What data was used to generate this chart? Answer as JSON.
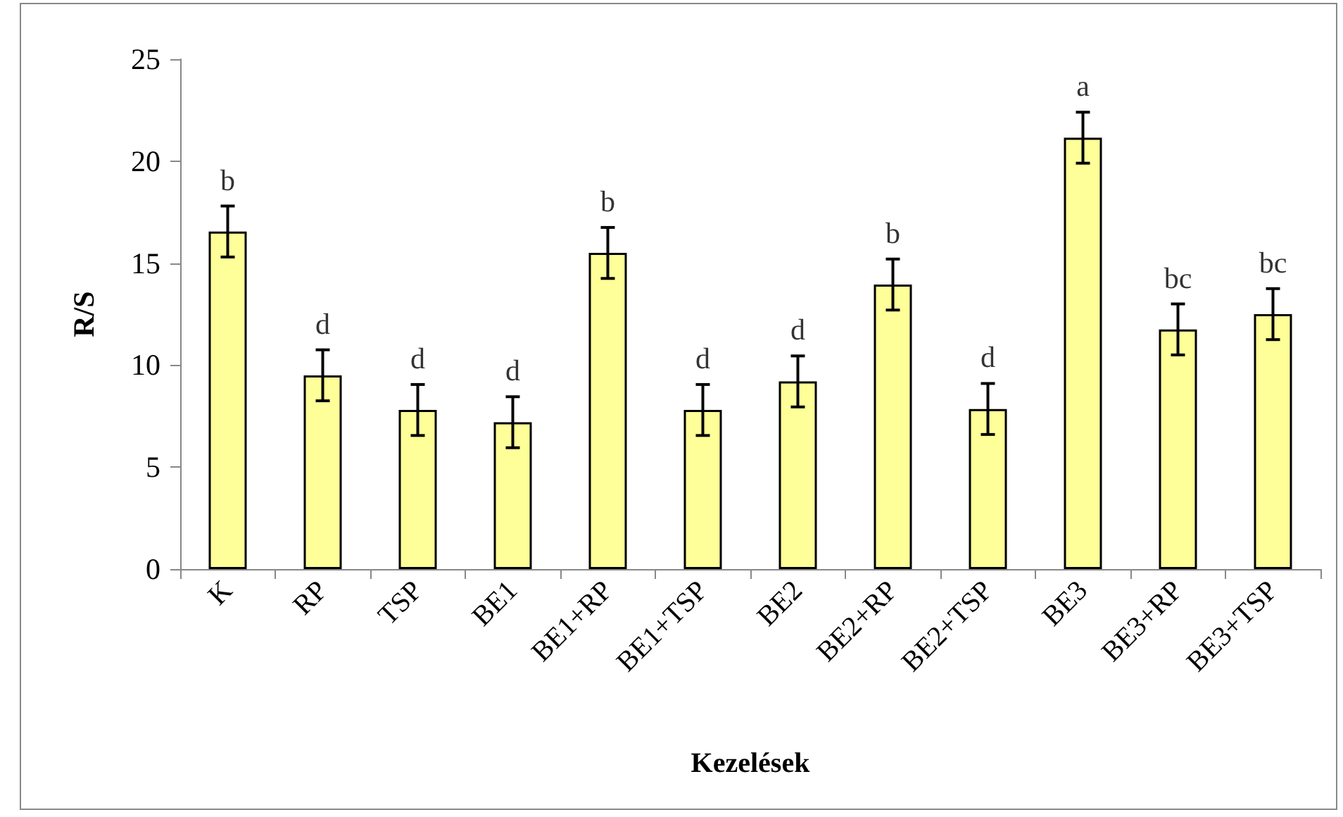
{
  "chart_data": {
    "type": "bar",
    "xlabel": "Kezelések",
    "ylabel": "R/S",
    "categories": [
      "K",
      "RP",
      "TSP",
      "BE1",
      "BE1+RP",
      "BE1+TSP",
      "BE2",
      "BE2+RP",
      "BE2+TSP",
      "BE3",
      "BE3+RP",
      "BE3+TSP"
    ],
    "values": [
      16.55,
      9.5,
      7.8,
      7.2,
      15.5,
      7.8,
      9.2,
      13.95,
      7.85,
      21.15,
      11.75,
      12.5
    ],
    "errors": [
      1.25,
      1.25,
      1.25,
      1.25,
      1.25,
      1.25,
      1.25,
      1.25,
      1.25,
      1.25,
      1.25,
      1.25
    ],
    "value_labels": [
      "b",
      "d",
      "d",
      "d",
      "b",
      "d",
      "d",
      "b",
      "d",
      "a",
      "bc",
      "bc"
    ],
    "color": "#ffff99",
    "ylim": [
      0,
      25
    ],
    "yticks": [
      0,
      5,
      10,
      15,
      20,
      25
    ],
    "grid": false
  }
}
